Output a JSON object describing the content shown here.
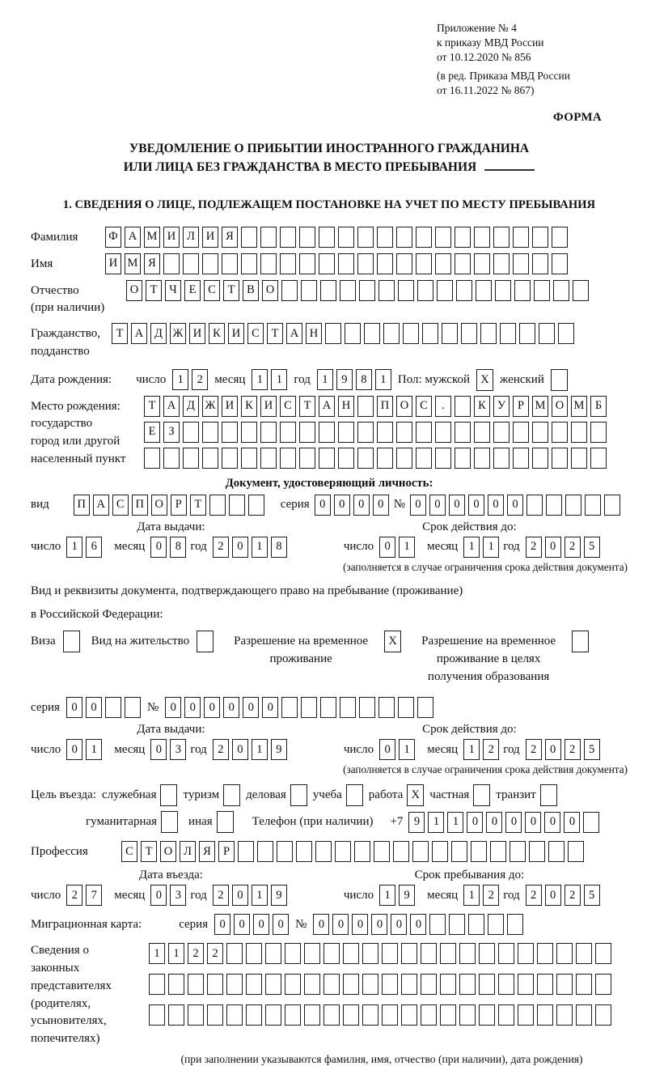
{
  "header": {
    "line1": "Приложение № 4",
    "line2": "к приказу МВД России",
    "line3": "от 10.12.2020 № 856",
    "line4": "(в ред. Приказа МВД России",
    "line5": "от 16.11.2022 № 867)",
    "form_label": "ФОРМА"
  },
  "title": {
    "line1": "УВЕДОМЛЕНИЕ О ПРИБЫТИИ ИНОСТРАННОГО ГРАЖДАНИНА",
    "line2": "ИЛИ ЛИЦА БЕЗ ГРАЖДАНСТВА В МЕСТО ПРЕБЫВАНИЯ"
  },
  "section1": {
    "heading": "1. СВЕДЕНИЯ О ЛИЦЕ, ПОДЛЕЖАЩЕМ ПОСТАНОВКЕ НА УЧЕТ ПО МЕСТУ ПРЕБЫВАНИЯ"
  },
  "fields": {
    "surname": {
      "label": "Фамилия",
      "cells": [
        "Ф",
        "А",
        "М",
        "И",
        "Л",
        "И",
        "Я",
        "",
        "",
        "",
        "",
        "",
        "",
        "",
        "",
        "",
        "",
        "",
        "",
        "",
        "",
        "",
        "",
        ""
      ]
    },
    "name": {
      "label": "Имя",
      "cells": [
        "И",
        "М",
        "Я",
        "",
        "",
        "",
        "",
        "",
        "",
        "",
        "",
        "",
        "",
        "",
        "",
        "",
        "",
        "",
        "",
        "",
        "",
        "",
        "",
        ""
      ]
    },
    "patronymic": {
      "label1": "Отчество",
      "label2": "(при наличии)",
      "cells": [
        "О",
        "Т",
        "Ч",
        "Е",
        "С",
        "Т",
        "В",
        "О",
        "",
        "",
        "",
        "",
        "",
        "",
        "",
        "",
        "",
        "",
        "",
        "",
        "",
        "",
        "",
        ""
      ]
    },
    "citizenship": {
      "label1": "Гражданство,",
      "label2": "подданство",
      "cells": [
        "Т",
        "А",
        "Д",
        "Ж",
        "И",
        "К",
        "И",
        "С",
        "Т",
        "А",
        "Н",
        "",
        "",
        "",
        "",
        "",
        "",
        "",
        "",
        "",
        "",
        "",
        "",
        ""
      ]
    },
    "birth_date": {
      "label": "Дата рождения:",
      "day_label": "число",
      "day": [
        "1",
        "2"
      ],
      "month_label": "месяц",
      "month": [
        "1",
        "1"
      ],
      "year_label": "год",
      "year": [
        "1",
        "9",
        "8",
        "1"
      ],
      "sex_label": "Пол: мужской",
      "sex_male": "X",
      "sex_female_label": "женский",
      "sex_female": ""
    },
    "birth_place": {
      "label1": "Место рождения:",
      "label2": "государство",
      "label3": "город или другой",
      "label4": "населенный пункт",
      "row1": [
        "Т",
        "А",
        "Д",
        "Ж",
        "И",
        "К",
        "И",
        "С",
        "Т",
        "А",
        "Н",
        "",
        "П",
        "О",
        "С",
        ".",
        "",
        "К",
        "У",
        "Р",
        "М",
        "О",
        "М",
        "Б"
      ],
      "row2": [
        "Е",
        "З",
        "",
        "",
        "",
        "",
        "",
        "",
        "",
        "",
        "",
        "",
        "",
        "",
        "",
        "",
        "",
        "",
        "",
        "",
        "",
        "",
        "",
        ""
      ],
      "row3": [
        "",
        "",
        "",
        "",
        "",
        "",
        "",
        "",
        "",
        "",
        "",
        "",
        "",
        "",
        "",
        "",
        "",
        "",
        "",
        "",
        "",
        "",
        "",
        ""
      ]
    }
  },
  "identity_doc": {
    "heading": "Документ, удостоверяющий личность:",
    "type_label": "вид",
    "type_cells": [
      "П",
      "А",
      "С",
      "П",
      "О",
      "Р",
      "Т",
      "",
      "",
      ""
    ],
    "series_label": "серия",
    "series_cells": [
      "0",
      "0",
      "0",
      "0"
    ],
    "number_label": "№",
    "number_cells": [
      "0",
      "0",
      "0",
      "0",
      "0",
      "0",
      "",
      "",
      "",
      "",
      ""
    ],
    "issue_date_label": "Дата выдачи:",
    "issue": {
      "day_label": "число",
      "day": [
        "1",
        "6"
      ],
      "month_label": "месяц",
      "month": [
        "0",
        "8"
      ],
      "year_label": "год",
      "year": [
        "2",
        "0",
        "1",
        "8"
      ]
    },
    "expiry_label": "Срок действия до:",
    "expiry": {
      "day_label": "число",
      "day": [
        "0",
        "1"
      ],
      "month_label": "месяц",
      "month": [
        "1",
        "1"
      ],
      "year_label": "год",
      "year": [
        "2",
        "0",
        "2",
        "5"
      ]
    },
    "note": "(заполняется в случае ограничения срока действия документа)"
  },
  "residence_doc": {
    "intro1": "Вид и реквизиты документа, подтверждающего право на пребывание (проживание)",
    "intro2": "в Российской Федерации:",
    "options": [
      {
        "label": "Виза",
        "value": ""
      },
      {
        "label": "Вид на жительство",
        "value": ""
      },
      {
        "label": "Разрешение на временное проживание",
        "value": "X"
      },
      {
        "label": "Разрешение на временное проживание в целях получения образования",
        "value": ""
      }
    ],
    "series_label": "серия",
    "series_cells": [
      "0",
      "0",
      "",
      ""
    ],
    "number_label": "№",
    "number_cells": [
      "0",
      "0",
      "0",
      "0",
      "0",
      "0",
      "",
      "",
      "",
      "",
      "",
      "",
      "",
      ""
    ],
    "issue_date_label": "Дата выдачи:",
    "issue": {
      "day_label": "число",
      "day": [
        "0",
        "1"
      ],
      "month_label": "месяц",
      "month": [
        "0",
        "3"
      ],
      "year_label": "год",
      "year": [
        "2",
        "0",
        "1",
        "9"
      ]
    },
    "expiry_label": "Срок действия до:",
    "expiry": {
      "day_label": "число",
      "day": [
        "0",
        "1"
      ],
      "month_label": "месяц",
      "month": [
        "1",
        "2"
      ],
      "year_label": "год",
      "year": [
        "2",
        "0",
        "2",
        "5"
      ]
    },
    "note": "(заполняется в случае ограничения срока действия документа)"
  },
  "visit_purpose": {
    "label": "Цель въезда:",
    "row1": [
      {
        "label": "служебная",
        "value": ""
      },
      {
        "label": "туризм",
        "value": ""
      },
      {
        "label": "деловая",
        "value": ""
      },
      {
        "label": "учеба",
        "value": ""
      },
      {
        "label": "работа",
        "value": "X"
      },
      {
        "label": "частная",
        "value": ""
      },
      {
        "label": "транзит",
        "value": ""
      }
    ],
    "row2": [
      {
        "label": "гуманитарная",
        "value": ""
      },
      {
        "label": "иная",
        "value": ""
      }
    ],
    "phone_label": "Телефон (при наличии)",
    "phone_prefix": "+7",
    "phone_cells": [
      "9",
      "1",
      "1",
      "0",
      "0",
      "0",
      "0",
      "0",
      "0",
      ""
    ]
  },
  "profession": {
    "label": "Профессия",
    "cells": [
      "С",
      "Т",
      "О",
      "Л",
      "Я",
      "Р",
      "",
      "",
      "",
      "",
      "",
      "",
      "",
      "",
      "",
      "",
      "",
      "",
      "",
      "",
      "",
      "",
      "",
      ""
    ]
  },
  "entry": {
    "entry_date_label": "Дата въезда:",
    "entry": {
      "day_label": "число",
      "day": [
        "2",
        "7"
      ],
      "month_label": "месяц",
      "month": [
        "0",
        "3"
      ],
      "year_label": "год",
      "year": [
        "2",
        "0",
        "1",
        "9"
      ]
    },
    "stay_until_label": "Срок пребывания до:",
    "stay": {
      "day_label": "число",
      "day": [
        "1",
        "9"
      ],
      "month_label": "месяц",
      "month": [
        "1",
        "2"
      ],
      "year_label": "год",
      "year": [
        "2",
        "0",
        "2",
        "5"
      ]
    }
  },
  "migration_card": {
    "label": "Миграционная карта:",
    "series_label": "серия",
    "series_cells": [
      "0",
      "0",
      "0",
      "0"
    ],
    "number_label": "№",
    "number_cells": [
      "0",
      "0",
      "0",
      "0",
      "0",
      "0",
      "",
      "",
      "",
      "",
      ""
    ]
  },
  "representatives": {
    "label1": "Сведения о",
    "label2": "законных",
    "label3": "представителях",
    "label4": "(родителях,",
    "label5": "усыновителях,",
    "label6": "попечителях)",
    "row1": [
      "1",
      "1",
      "2",
      "2",
      "",
      "",
      "",
      "",
      "",
      "",
      "",
      "",
      "",
      "",
      "",
      "",
      "",
      "",
      "",
      "",
      "",
      "",
      "",
      ""
    ],
    "row2": [
      "",
      "",
      "",
      "",
      "",
      "",
      "",
      "",
      "",
      "",
      "",
      "",
      "",
      "",
      "",
      "",
      "",
      "",
      "",
      "",
      "",
      "",
      "",
      ""
    ],
    "row3": [
      "",
      "",
      "",
      "",
      "",
      "",
      "",
      "",
      "",
      "",
      "",
      "",
      "",
      "",
      "",
      "",
      "",
      "",
      "",
      "",
      "",
      "",
      "",
      ""
    ],
    "note": "(при заполнении указываются фамилия, имя, отчество (при наличии), дата рождения)"
  }
}
